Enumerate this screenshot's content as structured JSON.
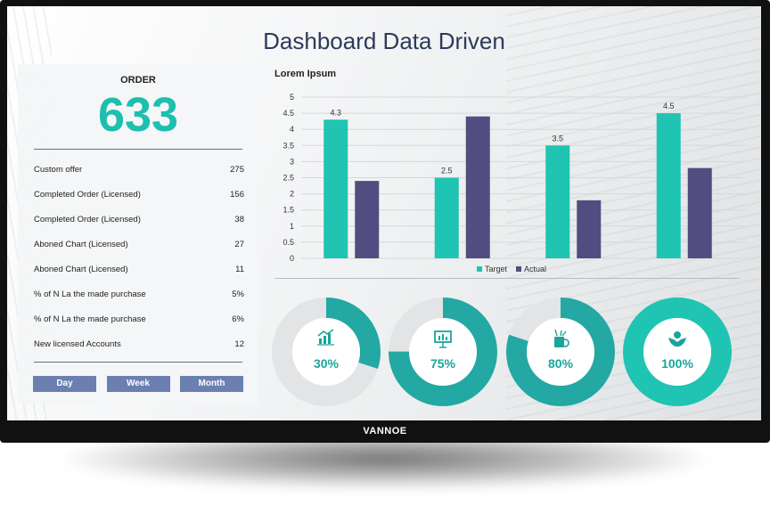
{
  "brand": "VANNOE",
  "title": "Dashboard Data Driven",
  "order": {
    "label": "ORDER",
    "value": "633",
    "rows": [
      {
        "label": "Custom offer",
        "value": "275"
      },
      {
        "label": "Completed Order (Licensed)",
        "value": "156"
      },
      {
        "label": "Completed Order (Licensed)",
        "value": "38"
      },
      {
        "label": "Aboned Chart (Licensed)",
        "value": "27"
      },
      {
        "label": "Aboned Chart (Licensed)",
        "value": "11"
      },
      {
        "label": "% of N La the made purchase",
        "value": "5%"
      },
      {
        "label": "% of N La the made purchase",
        "value": "6%"
      },
      {
        "label": "New licensed Accounts",
        "value": "12"
      }
    ],
    "buttons": [
      "Day",
      "Week",
      "Month"
    ]
  },
  "chart_data": {
    "type": "bar",
    "title": "Lorem Ipsum",
    "categories": [
      "",
      "",
      "",
      ""
    ],
    "series": [
      {
        "name": "Target",
        "values": [
          4.3,
          2.5,
          3.5,
          4.5
        ],
        "color": "#1fc4b2"
      },
      {
        "name": "Actual",
        "values": [
          2.4,
          4.4,
          1.8,
          2.8
        ],
        "color": "#524c80"
      }
    ],
    "data_labels": [
      "4.3",
      "2.5",
      "3.5",
      "4.5"
    ],
    "yticks": [
      "0",
      "0.5",
      "1",
      "1.5",
      "2",
      "2.5",
      "3",
      "3.5",
      "4",
      "4.5",
      "5"
    ],
    "ylim": [
      0,
      5
    ],
    "legend": "bottom",
    "grid": true
  },
  "donuts": [
    {
      "percent": 30,
      "label": "30%",
      "icon": "chart-growth-icon",
      "color": "#23a8a3"
    },
    {
      "percent": 75,
      "label": "75%",
      "icon": "presentation-board-icon",
      "color": "#23a8a3"
    },
    {
      "percent": 80,
      "label": "80%",
      "icon": "coffee-cup-icon",
      "color": "#23a8a3"
    },
    {
      "percent": 100,
      "label": "100%",
      "icon": "hands-care-icon",
      "color": "#1fc4b2"
    }
  ],
  "colors": {
    "accent": "#1dbfae",
    "title": "#2d3a5a",
    "button": "#6b7fb0",
    "donut_track": "#e3e4e5"
  }
}
